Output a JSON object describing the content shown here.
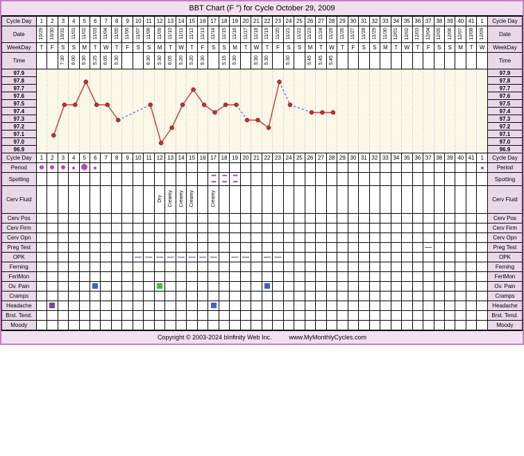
{
  "title": "BBT Chart (F °) for Cycle October 29, 2009",
  "footer_left": "Copyright © 2003-2024 bInfinity Web Inc.",
  "footer_right": "www.MyMonthlyCycles.com",
  "colors": {
    "border": "#c080c0",
    "header_bg": "#f0e0f0",
    "label_bg": "#e8d8e8",
    "chart_bg": "#fcf8e8",
    "line": "#d04040",
    "dotted_line": "#6080d0",
    "marker": "#c03030",
    "period": "#c040c0"
  },
  "labels": {
    "cycle_day": "Cycle Day",
    "date": "Date",
    "weekday": "WeekDay",
    "time": "Time",
    "period": "Period",
    "spotting": "Spotting",
    "cerv_fluid": "Cerv Fluid",
    "cerv_pos": "Cerv Pos",
    "cerv_firm": "Cerv Firm",
    "cerv_opn": "Cerv Opn",
    "preg_test": "Preg Test",
    "opk": "OPK",
    "ferning": "Ferning",
    "fertmon": "FertMon",
    "ov_pain": "Ov. Pain",
    "cramps": "Cramps",
    "headache": "Headache",
    "brst_tend": "Brst. Tend.",
    "moody": "Moody"
  },
  "cycle_days": [
    1,
    2,
    3,
    4,
    5,
    6,
    7,
    8,
    9,
    10,
    11,
    12,
    13,
    14,
    15,
    16,
    17,
    18,
    19,
    20,
    21,
    22,
    23,
    24,
    25,
    26,
    27,
    28,
    29,
    30,
    31,
    32,
    33,
    34,
    35,
    36,
    37,
    38,
    39,
    40,
    41,
    1
  ],
  "dates": [
    "10/29",
    "10/30",
    "10/31",
    "11/01",
    "11/02",
    "11/03",
    "11/04",
    "11/05",
    "11/06",
    "11/07",
    "11/08",
    "11/09",
    "11/10",
    "11/11",
    "11/12",
    "11/13",
    "11/14",
    "11/15",
    "11/16",
    "11/17",
    "11/18",
    "11/19",
    "11/20",
    "11/21",
    "11/22",
    "11/23",
    "11/24",
    "11/25",
    "11/26",
    "11/27",
    "11/28",
    "11/29",
    "11/30",
    "12/01",
    "12/02",
    "12/03",
    "12/04",
    "12/05",
    "12/06",
    "12/07",
    "12/08",
    "12/09"
  ],
  "weekdays": [
    "T",
    "F",
    "S",
    "S",
    "M",
    "T",
    "W",
    "T",
    "F",
    "S",
    "S",
    "M",
    "T",
    "W",
    "T",
    "F",
    "S",
    "S",
    "M",
    "T",
    "W",
    "T",
    "F",
    "S",
    "S",
    "M",
    "T",
    "W",
    "T",
    "F",
    "S",
    "S",
    "M",
    "T",
    "W",
    "T",
    "F",
    "S",
    "S",
    "M",
    "T",
    "W"
  ],
  "times": [
    "",
    "",
    "7:30",
    "6:00",
    "5:30",
    "5:25",
    "6:05",
    "5:30",
    "",
    "",
    "6:30",
    "5:30",
    "6:05",
    "5:20",
    "5:20",
    "5:30",
    "",
    "5:15",
    "5:30",
    "",
    "5:30",
    "5:30",
    "",
    "5:30",
    "",
    "5:45",
    "5:45",
    "5:45",
    "",
    "",
    "",
    "",
    "",
    "",
    "",
    "",
    "",
    "",
    "",
    "",
    "",
    ""
  ],
  "temp_scale": [
    "97.9",
    "97.8",
    "97.7",
    "97.6",
    "97.5",
    "97.4",
    "97.3",
    "97.2",
    "97.1",
    "97.0",
    "96.9"
  ],
  "chart": {
    "y_min": 96.9,
    "y_max": 97.9,
    "points": [
      {
        "day": 2,
        "t": 97.1
      },
      {
        "day": 3,
        "t": 97.5
      },
      {
        "day": 4,
        "t": 97.5
      },
      {
        "day": 5,
        "t": 97.8
      },
      {
        "day": 6,
        "t": 97.5
      },
      {
        "day": 7,
        "t": 97.5
      },
      {
        "day": 8,
        "t": 97.3
      },
      {
        "day": 11,
        "t": 97.5
      },
      {
        "day": 12,
        "t": 97.0
      },
      {
        "day": 13,
        "t": 97.2
      },
      {
        "day": 14,
        "t": 97.5
      },
      {
        "day": 15,
        "t": 97.7
      },
      {
        "day": 16,
        "t": 97.5
      },
      {
        "day": 17,
        "t": 97.4
      },
      {
        "day": 18,
        "t": 97.5
      },
      {
        "day": 19,
        "t": 97.5
      },
      {
        "day": 20,
        "t": 97.3
      },
      {
        "day": 21,
        "t": 97.3
      },
      {
        "day": 22,
        "t": 97.2
      },
      {
        "day": 23,
        "t": 97.8
      },
      {
        "day": 24,
        "t": 97.5
      },
      {
        "day": 26,
        "t": 97.4
      },
      {
        "day": 27,
        "t": 97.4
      },
      {
        "day": 28,
        "t": 97.4
      }
    ],
    "segments": [
      {
        "from": 2,
        "to": 8,
        "style": "solid"
      },
      {
        "from": 8,
        "to": 11,
        "style": "dotted"
      },
      {
        "from": 11,
        "to": 19,
        "style": "solid"
      },
      {
        "from": 19,
        "to": 20,
        "style": "dotted"
      },
      {
        "from": 20,
        "to": 23,
        "style": "solid"
      },
      {
        "from": 23,
        "to": 24,
        "style": "dotted"
      },
      {
        "from": 24,
        "to": 26,
        "style": "dotted"
      },
      {
        "from": 26,
        "to": 28,
        "style": "solid"
      }
    ]
  },
  "period": {
    "1": "med",
    "2": "med",
    "3": "med",
    "4": "small",
    "5": "big",
    "6": "small",
    "42": "small"
  },
  "spotting": {
    "17": true,
    "18": true,
    "19": true
  },
  "cerv_fluid": {
    "12": "Dry",
    "13": "Creamy",
    "14": "Creamy",
    "15": "Creamy",
    "17": "Creamy"
  },
  "preg_test": {
    "37": true
  },
  "opk": {
    "10": true,
    "11": true,
    "12": true,
    "13": true,
    "14": true,
    "15": true,
    "16": true,
    "17": true,
    "19": true,
    "20": true,
    "22": true,
    "23": true
  },
  "ov_pain": {
    "6": "blue",
    "12": "green",
    "22": "blue"
  },
  "headache": {
    "2": "purple",
    "17": "blue"
  }
}
